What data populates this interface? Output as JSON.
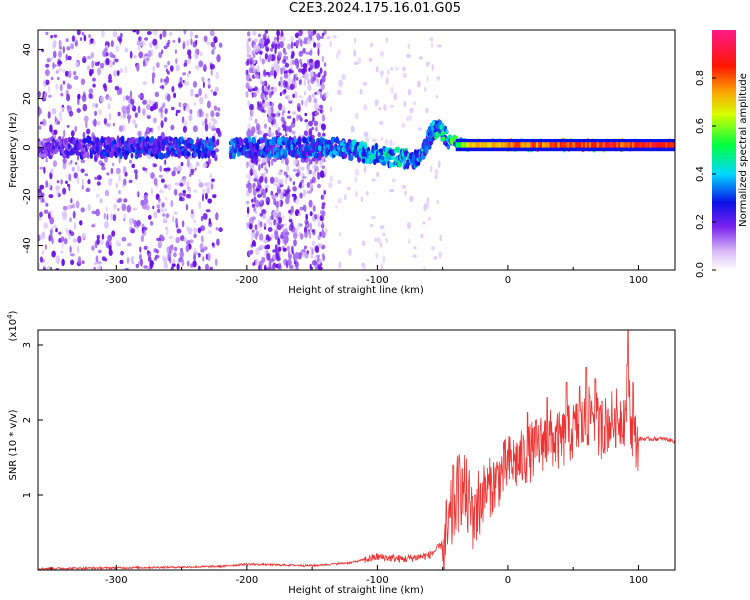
{
  "title": "C2E3.2024.175.16.01.G05",
  "chart_data": [
    {
      "type": "heatmap",
      "title": "C2E3.2024.175.16.01.G05",
      "xlabel": "Height of straight line (km)",
      "ylabel": "Frequency (Hz)",
      "xlim": [
        -360,
        128
      ],
      "ylim": [
        -50,
        48
      ],
      "x_ticks": [
        -300,
        -200,
        -100,
        0,
        100
      ],
      "x_tick_labels": [
        "-300",
        "-200",
        "-100",
        "0",
        "100"
      ],
      "y_ticks": [
        -40,
        -20,
        0,
        20,
        40
      ],
      "y_tick_labels": [
        "-40",
        "-20",
        "0",
        "20",
        "40"
      ],
      "colorbar": {
        "label": "Normalized spectral amplitude",
        "range": [
          0,
          1
        ],
        "ticks": [
          0.0,
          0.2,
          0.4,
          0.6,
          0.8
        ],
        "tick_labels": [
          "0.0",
          "0.2",
          "0.4",
          "0.6",
          "0.8"
        ],
        "colormap": "rainbow (white-purple-blue-cyan-green-yellow-red-magenta)"
      },
      "center_frequency_trace": [
        {
          "x": -360,
          "freq": 0,
          "amplitude": 0.2
        },
        {
          "x": -300,
          "freq": 0,
          "amplitude": 0.3
        },
        {
          "x": -210,
          "freq": 0,
          "amplitude": 0.35
        },
        {
          "x": -150,
          "freq": 0,
          "amplitude": 0.35
        },
        {
          "x": -130,
          "freq": 0,
          "amplitude": 0.4
        },
        {
          "x": -100,
          "freq": -3,
          "amplitude": 0.45
        },
        {
          "x": -70,
          "freq": -5,
          "amplitude": 0.45
        },
        {
          "x": -55,
          "freq": 8,
          "amplitude": 0.3
        },
        {
          "x": -45,
          "freq": 3,
          "amplitude": 0.5
        },
        {
          "x": -30,
          "freq": 1,
          "amplitude": 0.7
        },
        {
          "x": 0,
          "freq": 1,
          "amplitude": 0.8
        },
        {
          "x": 50,
          "freq": 1,
          "amplitude": 0.85
        },
        {
          "x": 100,
          "freq": 1,
          "amplitude": 0.9
        },
        {
          "x": 128,
          "freq": 1,
          "amplitude": 0.9
        }
      ],
      "noise_regions": [
        {
          "x_start": -360,
          "x_end": -220,
          "density": "high"
        },
        {
          "x_start": -200,
          "x_end": -140,
          "density": "high"
        },
        {
          "x_start": -140,
          "x_end": -50,
          "density": "low"
        }
      ]
    },
    {
      "type": "line",
      "xlabel": "Height of straight line (km)",
      "ylabel": "SNR (10 * v/v)",
      "ylabel_multiplier": "(x10",
      "ylabel_multiplier_exp": "4",
      "ylabel_multiplier_close": ")",
      "xlim": [
        -360,
        128
      ],
      "ylim": [
        0,
        3.2
      ],
      "x_ticks": [
        -300,
        -200,
        -100,
        0,
        100
      ],
      "x_tick_labels": [
        "-300",
        "-200",
        "-100",
        "0",
        "100"
      ],
      "y_ticks": [
        1,
        2,
        3
      ],
      "y_tick_labels": [
        "1",
        "2",
        "3"
      ],
      "line_color": "#ee3333",
      "series": [
        {
          "x": [
            -360,
            -300,
            -250,
            -220,
            -200,
            -180,
            -150,
            -120,
            -100,
            -80,
            -60,
            -50,
            -45,
            -40,
            -35,
            -30,
            -25,
            -20,
            -10,
            0,
            10,
            20,
            30,
            40,
            50,
            60,
            65,
            70,
            80,
            90,
            92,
            95,
            100,
            110,
            120,
            128
          ],
          "y": [
            0.02,
            0.03,
            0.04,
            0.05,
            0.08,
            0.07,
            0.06,
            0.1,
            0.18,
            0.15,
            0.2,
            0.35,
            0.6,
            1.0,
            1.2,
            0.9,
            0.8,
            1.05,
            1.2,
            1.45,
            1.5,
            1.65,
            1.8,
            1.75,
            1.9,
            2.0,
            2.2,
            1.9,
            2.05,
            2.1,
            2.7,
            1.8,
            1.75,
            1.75,
            1.75,
            1.72
          ],
          "spike_peaks": [
            {
              "x": -42,
              "y": 1.4
            },
            {
              "x": -35,
              "y": 1.35
            },
            {
              "x": -25,
              "y": 1.0
            },
            {
              "x": 15,
              "y": 2.1
            },
            {
              "x": 30,
              "y": 2.3
            },
            {
              "x": 45,
              "y": 2.5
            },
            {
              "x": 55,
              "y": 2.45
            },
            {
              "x": 60,
              "y": 2.7
            },
            {
              "x": 67,
              "y": 2.55
            },
            {
              "x": 72,
              "y": 2.25
            },
            {
              "x": 82,
              "y": 2.15
            },
            {
              "x": 92,
              "y": 3.2
            },
            {
              "x": 96,
              "y": 2.5
            }
          ]
        }
      ]
    }
  ]
}
